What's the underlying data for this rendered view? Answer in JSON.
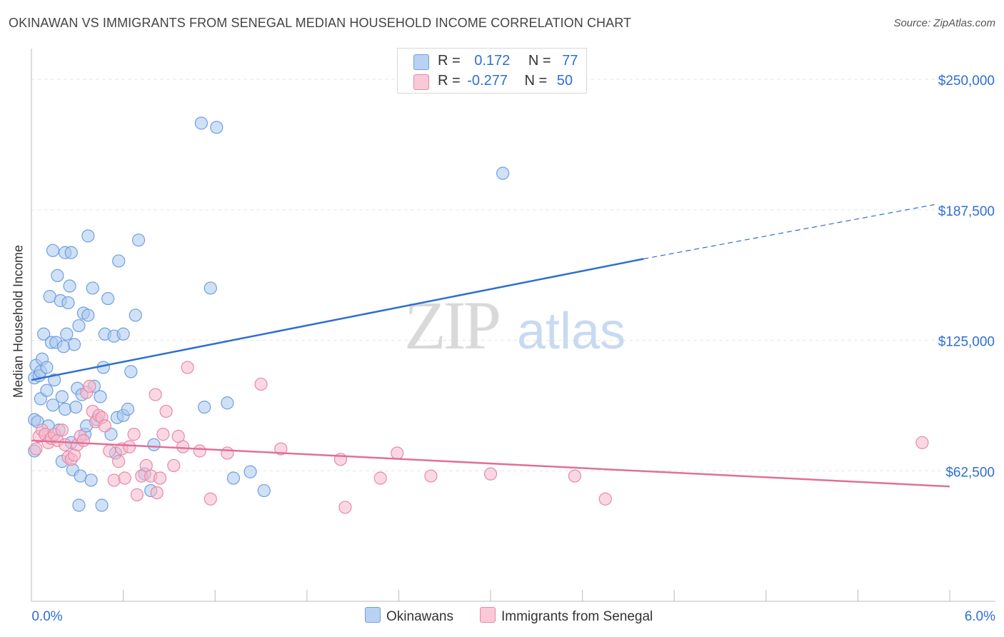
{
  "title": "OKINAWAN VS IMMIGRANTS FROM SENEGAL MEDIAN HOUSEHOLD INCOME CORRELATION CHART",
  "source": "Source: ZipAtlas.com",
  "watermark": {
    "zip": "ZIP",
    "atlas": "atlas"
  },
  "legend": {
    "row1": {
      "r_label": "R =",
      "r_value": "0.172",
      "n_label": "N =",
      "n_value": "77"
    },
    "row2": {
      "r_label": "R =",
      "r_value": "-0.277",
      "n_label": "N =",
      "n_value": "50"
    }
  },
  "colors": {
    "blue_fill": "#aac8f0",
    "blue_stroke": "#6f9fdc",
    "blue_line": "#2f6fd0",
    "pink_fill": "#f6b8cb",
    "pink_stroke": "#e888a8",
    "pink_line": "#e0709a",
    "axis_text": "#2f6fd0",
    "grid": "#e6e6e6"
  },
  "chart_data": {
    "type": "scatter",
    "xlabel": "",
    "ylabel": "Median Household Income",
    "xlim": [
      0,
      6
    ],
    "ylim": [
      0,
      262000
    ],
    "x_tick_labels": [
      "0.0%",
      "6.0%"
    ],
    "y_ticks": [
      62500,
      125000,
      187500,
      250000
    ],
    "y_tick_labels": [
      "$62,500",
      "$125,000",
      "$187,500",
      "$250,000"
    ],
    "series": [
      {
        "name": "Okinawans",
        "r": 0.172,
        "n": 77,
        "trend": {
          "x0": 0.0,
          "y0": 106000,
          "x1": 4.0,
          "y1": 164000,
          "x_dash_end": 5.9,
          "y_dash_end": 190000
        },
        "points": [
          [
            0.02,
            107000
          ],
          [
            0.03,
            113000
          ],
          [
            0.02,
            87000
          ],
          [
            0.04,
            86000
          ],
          [
            0.05,
            108000
          ],
          [
            0.06,
            110000
          ],
          [
            0.07,
            116000
          ],
          [
            0.06,
            97000
          ],
          [
            0.08,
            128000
          ],
          [
            0.1,
            112000
          ],
          [
            0.1,
            101000
          ],
          [
            0.11,
            84000
          ],
          [
            0.12,
            146000
          ],
          [
            0.13,
            124000
          ],
          [
            0.14,
            94000
          ],
          [
            0.14,
            168000
          ],
          [
            0.15,
            106000
          ],
          [
            0.16,
            124000
          ],
          [
            0.17,
            156000
          ],
          [
            0.18,
            82000
          ],
          [
            0.19,
            144000
          ],
          [
            0.2,
            67000
          ],
          [
            0.2,
            98000
          ],
          [
            0.21,
            122000
          ],
          [
            0.22,
            92000
          ],
          [
            0.22,
            167000
          ],
          [
            0.23,
            128000
          ],
          [
            0.24,
            143000
          ],
          [
            0.25,
            151000
          ],
          [
            0.26,
            76000
          ],
          [
            0.26,
            167000
          ],
          [
            0.27,
            63000
          ],
          [
            0.28,
            123000
          ],
          [
            0.29,
            93000
          ],
          [
            0.3,
            102000
          ],
          [
            0.31,
            46000
          ],
          [
            0.31,
            132000
          ],
          [
            0.32,
            60000
          ],
          [
            0.33,
            99000
          ],
          [
            0.34,
            138000
          ],
          [
            0.35,
            80000
          ],
          [
            0.36,
            84000
          ],
          [
            0.37,
            137000
          ],
          [
            0.37,
            175000
          ],
          [
            0.39,
            58000
          ],
          [
            0.4,
            150000
          ],
          [
            0.41,
            103000
          ],
          [
            0.43,
            87000
          ],
          [
            0.45,
            98000
          ],
          [
            0.46,
            46000
          ],
          [
            0.47,
            112000
          ],
          [
            0.48,
            128000
          ],
          [
            0.5,
            145000
          ],
          [
            0.52,
            80000
          ],
          [
            0.54,
            127000
          ],
          [
            0.55,
            71000
          ],
          [
            0.56,
            88000
          ],
          [
            0.57,
            163000
          ],
          [
            0.6,
            89000
          ],
          [
            0.6,
            128000
          ],
          [
            0.63,
            92000
          ],
          [
            0.65,
            110000
          ],
          [
            0.68,
            137000
          ],
          [
            0.7,
            173000
          ],
          [
            0.74,
            61000
          ],
          [
            0.78,
            53000
          ],
          [
            0.8,
            75000
          ],
          [
            1.11,
            229000
          ],
          [
            1.13,
            93000
          ],
          [
            1.17,
            150000
          ],
          [
            1.21,
            227000
          ],
          [
            1.28,
            95000
          ],
          [
            1.32,
            59000
          ],
          [
            1.43,
            62000
          ],
          [
            1.52,
            53000
          ],
          [
            3.08,
            205000
          ],
          [
            0.02,
            72000
          ]
        ]
      },
      {
        "name": "Immigrants from Senegal",
        "r": -0.277,
        "n": 50,
        "trend": {
          "x0": 0.0,
          "y0": 77000,
          "x1": 6.0,
          "y1": 55000
        },
        "points": [
          [
            0.03,
            73000
          ],
          [
            0.05,
            79000
          ],
          [
            0.07,
            82000
          ],
          [
            0.09,
            80000
          ],
          [
            0.11,
            76000
          ],
          [
            0.13,
            78000
          ],
          [
            0.15,
            80000
          ],
          [
            0.17,
            77000
          ],
          [
            0.2,
            82000
          ],
          [
            0.22,
            75000
          ],
          [
            0.24,
            69000
          ],
          [
            0.26,
            68000
          ],
          [
            0.28,
            70000
          ],
          [
            0.3,
            75000
          ],
          [
            0.32,
            79000
          ],
          [
            0.34,
            77000
          ],
          [
            0.36,
            100000
          ],
          [
            0.38,
            103000
          ],
          [
            0.4,
            91000
          ],
          [
            0.42,
            86000
          ],
          [
            0.44,
            89000
          ],
          [
            0.46,
            88000
          ],
          [
            0.48,
            84000
          ],
          [
            0.51,
            72000
          ],
          [
            0.54,
            58000
          ],
          [
            0.57,
            67000
          ],
          [
            0.59,
            73000
          ],
          [
            0.61,
            59000
          ],
          [
            0.64,
            74000
          ],
          [
            0.67,
            80000
          ],
          [
            0.72,
            60000
          ],
          [
            0.75,
            65000
          ],
          [
            0.78,
            60000
          ],
          [
            0.81,
            99000
          ],
          [
            0.84,
            59000
          ],
          [
            0.86,
            80000
          ],
          [
            0.88,
            91000
          ],
          [
            0.93,
            65000
          ],
          [
            0.96,
            79000
          ],
          [
            0.99,
            74000
          ],
          [
            1.02,
            112000
          ],
          [
            1.1,
            72000
          ],
          [
            1.17,
            49000
          ],
          [
            1.28,
            71000
          ],
          [
            1.5,
            104000
          ],
          [
            1.63,
            73000
          ],
          [
            2.02,
            68000
          ],
          [
            2.05,
            45000
          ],
          [
            2.28,
            59000
          ],
          [
            2.39,
            71000
          ]
        ],
        "extra_points": [
          [
            2.61,
            60000
          ],
          [
            3.0,
            61000
          ],
          [
            3.55,
            60000
          ],
          [
            3.75,
            49000
          ],
          [
            5.82,
            76000
          ],
          [
            0.82,
            52000
          ],
          [
            0.69,
            51000
          ]
        ]
      }
    ]
  },
  "bottom_legend": {
    "item1": "Okinawans",
    "item2": "Immigrants from Senegal"
  }
}
